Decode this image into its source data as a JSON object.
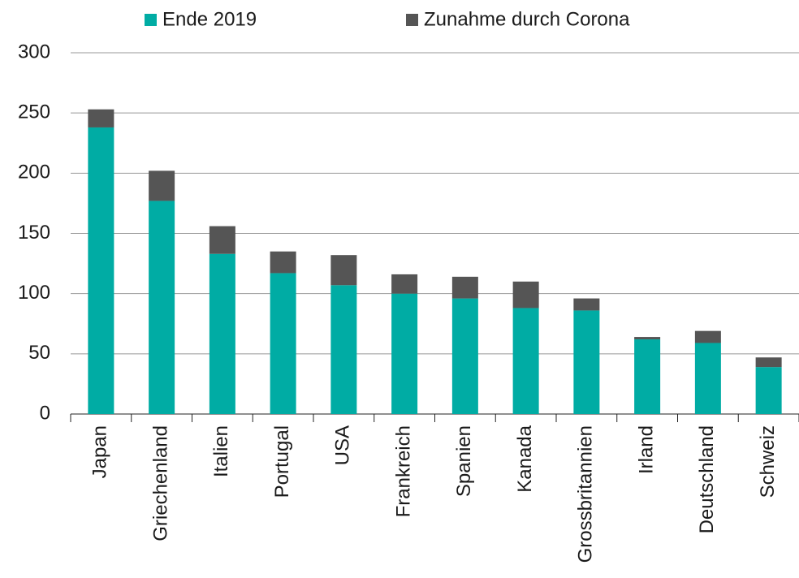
{
  "chart_data": {
    "type": "stacked_bar",
    "categories": [
      "Japan",
      "Griechenland",
      "Italien",
      "Portugal",
      "USA",
      "Frankreich",
      "Spanien",
      "Kanada",
      "Grossbritannien",
      "Irland",
      "Deutschland",
      "Schweiz"
    ],
    "series": [
      {
        "name": "Ende 2019",
        "color": "#00aca4",
        "values": [
          238,
          177,
          133,
          117,
          107,
          100,
          96,
          88,
          86,
          62,
          59,
          39
        ]
      },
      {
        "name": "Zunahme durch Corona",
        "color": "#555555",
        "values": [
          15,
          25,
          23,
          18,
          25,
          16,
          18,
          22,
          10,
          2,
          10,
          8
        ]
      }
    ],
    "ylim": [
      0,
      300
    ],
    "yticks": [
      0,
      50,
      100,
      150,
      200,
      250,
      300
    ],
    "grid": true,
    "legend": "top"
  }
}
